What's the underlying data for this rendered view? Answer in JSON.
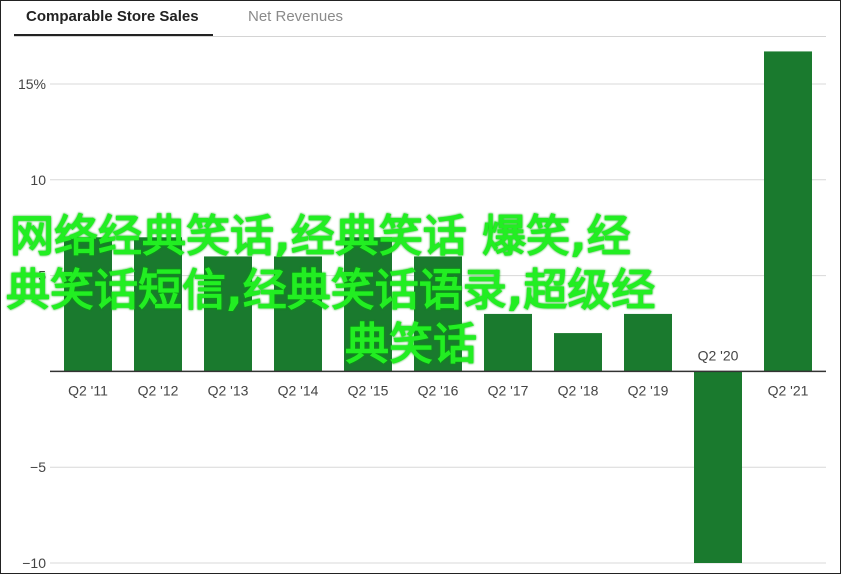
{
  "tabs": [
    {
      "label": "Comparable Store Sales",
      "active": true
    },
    {
      "label": "Net Revenues",
      "active": false
    }
  ],
  "overlay": {
    "line1": "网络经典笑话,经典笑话 爆笑,经",
    "line2": "典笑话短信,经典笑话语录,超级经",
    "line3": "典笑话"
  },
  "chart_data": {
    "type": "bar",
    "title": "",
    "xlabel": "",
    "ylabel": "",
    "ylim": [
      -10,
      17
    ],
    "yticks": [
      {
        "value": 15,
        "label": "15%"
      },
      {
        "value": 10,
        "label": "10"
      },
      {
        "value": 5,
        "label": "5"
      },
      {
        "value": 0,
        "label": ""
      },
      {
        "value": -5,
        "label": "−5"
      },
      {
        "value": -10,
        "label": "−10"
      }
    ],
    "categories": [
      "Q2 '11",
      "Q2 '12",
      "Q2 '13",
      "Q2 '14",
      "Q2 '15",
      "Q2 '16",
      "Q2 '17",
      "Q2 '18",
      "Q2 '19",
      "Q2 '20",
      "Q2 '21"
    ],
    "values": [
      7,
      7,
      6,
      6,
      7,
      6,
      3,
      2,
      3,
      -10,
      16.7
    ],
    "colors": {
      "bar": "#1a7a2e",
      "grid": "#d8d8d8",
      "axis": "#333333",
      "text": "#444444"
    },
    "grid": true
  }
}
